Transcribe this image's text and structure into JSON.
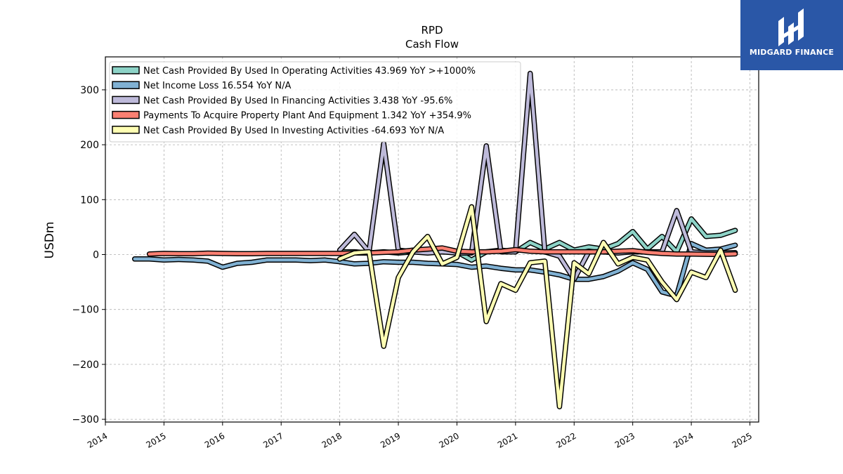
{
  "chart_data": {
    "type": "line",
    "title": "RPD",
    "subtitle": "Cash Flow",
    "ylabel": "USDm",
    "xlabel": "",
    "ylim": [
      -305,
      360
    ],
    "xlim": [
      2014.0,
      2025.15
    ],
    "yticks": [
      -300,
      -200,
      -100,
      0,
      100,
      200,
      300
    ],
    "yticklabels": [
      "−300",
      "−200",
      "−100",
      "0",
      "100",
      "200",
      "300"
    ],
    "xticks": [
      2014,
      2015,
      2016,
      2017,
      2018,
      2019,
      2020,
      2021,
      2022,
      2023,
      2024,
      2025
    ],
    "xticklabels": [
      "2014",
      "2015",
      "2016",
      "2017",
      "2018",
      "2019",
      "2020",
      "2021",
      "2022",
      "2023",
      "2024",
      "2025"
    ],
    "grid": true,
    "legend_position": "top-left",
    "series": [
      {
        "name": "Net Cash Provided By Used In Operating Activities",
        "legend": "Net Cash Provided By Used In Operating Activities  43.969 YoY >+1000%",
        "color": "#8dd3c7",
        "points": [
          [
            2018.0,
            5
          ],
          [
            2018.25,
            5
          ],
          [
            2018.5,
            3
          ],
          [
            2018.75,
            5
          ],
          [
            2019.0,
            3
          ],
          [
            2019.25,
            5
          ],
          [
            2019.5,
            8
          ],
          [
            2019.75,
            5
          ],
          [
            2020.0,
            5
          ],
          [
            2020.25,
            -10
          ],
          [
            2020.5,
            5
          ],
          [
            2020.75,
            8
          ],
          [
            2021.0,
            5
          ],
          [
            2021.25,
            22
          ],
          [
            2021.5,
            10
          ],
          [
            2021.75,
            22
          ],
          [
            2022.0,
            8
          ],
          [
            2022.25,
            14
          ],
          [
            2022.5,
            10
          ],
          [
            2022.75,
            20
          ],
          [
            2023.0,
            42
          ],
          [
            2023.25,
            10
          ],
          [
            2023.5,
            33
          ],
          [
            2023.75,
            5
          ],
          [
            2024.0,
            65
          ],
          [
            2024.25,
            33
          ],
          [
            2024.5,
            35
          ],
          [
            2024.75,
            44
          ]
        ]
      },
      {
        "name": "Net Income Loss",
        "legend": "Net Income Loss  16.554 YoY N/A",
        "color": "#80b1d3",
        "points": [
          [
            2014.5,
            -8
          ],
          [
            2014.75,
            -8
          ],
          [
            2015.0,
            -10
          ],
          [
            2015.25,
            -9
          ],
          [
            2015.5,
            -10
          ],
          [
            2015.75,
            -12
          ],
          [
            2016.0,
            -23
          ],
          [
            2016.25,
            -16
          ],
          [
            2016.5,
            -14
          ],
          [
            2016.75,
            -10
          ],
          [
            2017.0,
            -10
          ],
          [
            2017.25,
            -10
          ],
          [
            2017.5,
            -11
          ],
          [
            2017.75,
            -10
          ],
          [
            2018.0,
            -13
          ],
          [
            2018.25,
            -17
          ],
          [
            2018.5,
            -16
          ],
          [
            2018.75,
            -13
          ],
          [
            2019.0,
            -14
          ],
          [
            2019.25,
            -14
          ],
          [
            2019.5,
            -16
          ],
          [
            2019.75,
            -17
          ],
          [
            2020.0,
            -18
          ],
          [
            2020.25,
            -23
          ],
          [
            2020.5,
            -21
          ],
          [
            2020.75,
            -25
          ],
          [
            2021.0,
            -28
          ],
          [
            2021.25,
            -28
          ],
          [
            2021.5,
            -32
          ],
          [
            2021.75,
            -37
          ],
          [
            2022.0,
            -45
          ],
          [
            2022.25,
            -45
          ],
          [
            2022.5,
            -40
          ],
          [
            2022.75,
            -30
          ],
          [
            2023.0,
            -15
          ],
          [
            2023.25,
            -27
          ],
          [
            2023.5,
            -68
          ],
          [
            2023.75,
            -75
          ],
          [
            2024.0,
            20
          ],
          [
            2024.25,
            8
          ],
          [
            2024.5,
            10
          ],
          [
            2024.75,
            17
          ]
        ]
      },
      {
        "name": "Net Cash Provided By Used In Financing Activities",
        "legend": "Net Cash Provided By Used In Financing Activities  3.438 YoY -95.6%",
        "color": "#bebada",
        "points": [
          [
            2018.0,
            8
          ],
          [
            2018.25,
            37
          ],
          [
            2018.5,
            5
          ],
          [
            2018.75,
            202
          ],
          [
            2019.0,
            8
          ],
          [
            2019.25,
            5
          ],
          [
            2019.5,
            3
          ],
          [
            2019.75,
            5
          ],
          [
            2020.0,
            3
          ],
          [
            2020.25,
            3
          ],
          [
            2020.5,
            198
          ],
          [
            2020.75,
            5
          ],
          [
            2021.0,
            5
          ],
          [
            2021.25,
            330
          ],
          [
            2021.5,
            5
          ],
          [
            2021.75,
            -3
          ],
          [
            2022.0,
            -45
          ],
          [
            2022.25,
            5
          ],
          [
            2022.5,
            5
          ],
          [
            2022.75,
            3
          ],
          [
            2023.0,
            5
          ],
          [
            2023.25,
            5
          ],
          [
            2023.5,
            5
          ],
          [
            2023.75,
            80
          ],
          [
            2024.0,
            5
          ],
          [
            2024.25,
            3
          ],
          [
            2024.5,
            3
          ],
          [
            2024.75,
            3.4
          ]
        ]
      },
      {
        "name": "Payments To Acquire Property Plant And Equipment",
        "legend": "Payments To Acquire Property Plant And Equipment  1.342 YoY +354.9%",
        "color": "#fb8072",
        "points": [
          [
            2014.75,
            1
          ],
          [
            2015.0,
            2
          ],
          [
            2015.25,
            1.5
          ],
          [
            2015.5,
            1.5
          ],
          [
            2015.75,
            2.5
          ],
          [
            2016.0,
            2
          ],
          [
            2016.25,
            1.5
          ],
          [
            2016.5,
            1.5
          ],
          [
            2016.75,
            2
          ],
          [
            2017.0,
            2
          ],
          [
            2017.25,
            2
          ],
          [
            2017.5,
            2
          ],
          [
            2017.75,
            2
          ],
          [
            2018.0,
            2
          ],
          [
            2018.25,
            3
          ],
          [
            2018.5,
            3
          ],
          [
            2018.75,
            4
          ],
          [
            2019.0,
            5
          ],
          [
            2019.25,
            8
          ],
          [
            2019.5,
            10
          ],
          [
            2019.75,
            12
          ],
          [
            2020.0,
            6
          ],
          [
            2020.25,
            5
          ],
          [
            2020.5,
            5
          ],
          [
            2020.75,
            6
          ],
          [
            2021.0,
            9
          ],
          [
            2021.25,
            6
          ],
          [
            2021.5,
            5
          ],
          [
            2021.75,
            5
          ],
          [
            2022.0,
            5
          ],
          [
            2022.25,
            5
          ],
          [
            2022.5,
            5
          ],
          [
            2022.75,
            6
          ],
          [
            2023.0,
            7
          ],
          [
            2023.25,
            4
          ],
          [
            2023.5,
            2
          ],
          [
            2023.75,
            1
          ],
          [
            2024.0,
            1
          ],
          [
            2024.25,
            0.5
          ],
          [
            2024.5,
            0.3
          ],
          [
            2024.75,
            1.3
          ]
        ]
      },
      {
        "name": "Net Cash Provided By Used In Investing Activities",
        "legend": "Net Cash Provided By Used In Investing Activities  -64.693 YoY N/A",
        "color": "#ffffb3",
        "points": [
          [
            2018.0,
            -8
          ],
          [
            2018.25,
            3
          ],
          [
            2018.5,
            5
          ],
          [
            2018.75,
            -167
          ],
          [
            2019.0,
            -42
          ],
          [
            2019.25,
            5
          ],
          [
            2019.5,
            33
          ],
          [
            2019.75,
            -17
          ],
          [
            2020.0,
            -5
          ],
          [
            2020.25,
            87
          ],
          [
            2020.5,
            -122
          ],
          [
            2020.75,
            -53
          ],
          [
            2021.0,
            -65
          ],
          [
            2021.25,
            -15
          ],
          [
            2021.5,
            -12
          ],
          [
            2021.75,
            -277
          ],
          [
            2022.0,
            -15
          ],
          [
            2022.25,
            -35
          ],
          [
            2022.5,
            22
          ],
          [
            2022.75,
            -17
          ],
          [
            2023.0,
            -5
          ],
          [
            2023.25,
            -10
          ],
          [
            2023.5,
            -50
          ],
          [
            2023.75,
            -82
          ],
          [
            2024.0,
            -32
          ],
          [
            2024.25,
            -42
          ],
          [
            2024.5,
            8
          ],
          [
            2024.75,
            -65
          ]
        ]
      }
    ]
  },
  "logo": {
    "text": "MIDGARD FINANCE",
    "color": "#2a57a7"
  }
}
